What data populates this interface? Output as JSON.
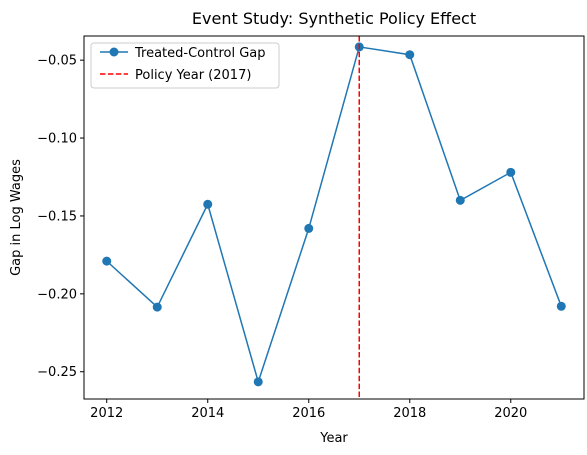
{
  "chart_data": {
    "type": "line",
    "title": "Event Study: Synthetic Policy Effect",
    "xlabel": "Year",
    "ylabel": "Gap in Log Wages",
    "xlim": [
      2011.55,
      2021.45
    ],
    "ylim": [
      -0.2675,
      -0.0345
    ],
    "x_ticks": [
      2012,
      2014,
      2016,
      2018,
      2020
    ],
    "y_ticks": [
      -0.25,
      -0.2,
      -0.15,
      -0.1,
      -0.05
    ],
    "x_tick_labels": [
      "2012",
      "2014",
      "2016",
      "2018",
      "2020"
    ],
    "y_tick_labels": [
      "−0.25",
      "−0.20",
      "−0.15",
      "−0.10",
      "−0.05"
    ],
    "grid": false,
    "legend_position": "top-left",
    "series": [
      {
        "name": "Treated-Control Gap",
        "color": "#1f77b4",
        "marker": "circle",
        "x": [
          2012,
          2013,
          2014,
          2015,
          2016,
          2017,
          2018,
          2019,
          2020,
          2021
        ],
        "y": [
          -0.179,
          -0.2085,
          -0.1425,
          -0.2565,
          -0.158,
          -0.0415,
          -0.0465,
          -0.14,
          -0.122,
          -0.208
        ]
      }
    ],
    "reference_lines": [
      {
        "name": "Policy Year (2017)",
        "orientation": "vertical",
        "x": 2017,
        "color": "#ff0000",
        "style": "dashed"
      }
    ]
  }
}
